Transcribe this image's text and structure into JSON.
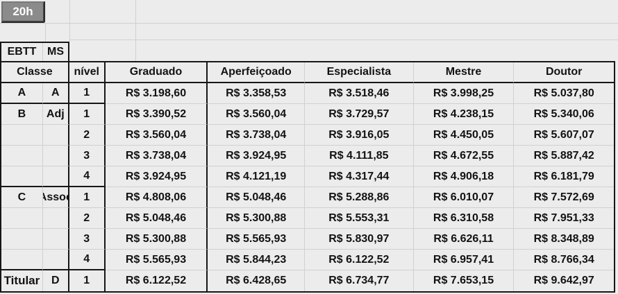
{
  "workload_button": {
    "label": "20h"
  },
  "type_box": {
    "left": "EBTT",
    "right": "MS"
  },
  "header": {
    "classe": "Classe",
    "nivel": "nível",
    "degree_columns": [
      "Graduado",
      "Aperfeiçoado",
      "Especialista",
      "Mestre",
      "Doutor"
    ]
  },
  "rows": [
    {
      "classe": "A",
      "sub": "A",
      "nivel": "1",
      "group_end": true,
      "values": [
        "R$ 3.198,60",
        "R$ 3.358,53",
        "R$ 3.518,46",
        "R$ 3.998,25",
        "R$ 5.037,80"
      ]
    },
    {
      "classe": "B",
      "sub": "Adj",
      "nivel": "1",
      "group_end": false,
      "values": [
        "R$ 3.390,52",
        "R$ 3.560,04",
        "R$ 3.729,57",
        "R$ 4.238,15",
        "R$ 5.340,06"
      ]
    },
    {
      "classe": "",
      "sub": "",
      "nivel": "2",
      "group_end": false,
      "values": [
        "R$ 3.560,04",
        "R$ 3.738,04",
        "R$ 3.916,05",
        "R$ 4.450,05",
        "R$ 5.607,07"
      ]
    },
    {
      "classe": "",
      "sub": "",
      "nivel": "3",
      "group_end": false,
      "values": [
        "R$ 3.738,04",
        "R$ 3.924,95",
        "R$ 4.111,85",
        "R$ 4.672,55",
        "R$ 5.887,42"
      ]
    },
    {
      "classe": "",
      "sub": "",
      "nivel": "4",
      "group_end": true,
      "values": [
        "R$ 3.924,95",
        "R$ 4.121,19",
        "R$ 4.317,44",
        "R$ 4.906,18",
        "R$ 6.181,79"
      ]
    },
    {
      "classe": "C",
      "sub": "Assoc",
      "nivel": "1",
      "group_end": false,
      "values": [
        "R$ 4.808,06",
        "R$ 5.048,46",
        "R$ 5.288,86",
        "R$ 6.010,07",
        "R$ 7.572,69"
      ]
    },
    {
      "classe": "",
      "sub": "",
      "nivel": "2",
      "group_end": false,
      "values": [
        "R$ 5.048,46",
        "R$ 5.300,88",
        "R$ 5.553,31",
        "R$ 6.310,58",
        "R$ 7.951,33"
      ]
    },
    {
      "classe": "",
      "sub": "",
      "nivel": "3",
      "group_end": false,
      "values": [
        "R$ 5.300,88",
        "R$ 5.565,93",
        "R$ 5.830,97",
        "R$ 6.626,11",
        "R$ 8.348,89"
      ]
    },
    {
      "classe": "",
      "sub": "",
      "nivel": "4",
      "group_end": true,
      "values": [
        "R$ 5.565,93",
        "R$ 5.844,23",
        "R$ 6.122,52",
        "R$ 6.957,41",
        "R$ 8.766,34"
      ]
    },
    {
      "classe": "Titular",
      "sub": "D",
      "nivel": "1",
      "group_end": false,
      "values": [
        "R$ 6.122,52",
        "R$ 6.428,65",
        "R$ 6.734,77",
        "R$ 7.653,15",
        "R$ 9.642,97"
      ]
    }
  ],
  "colors": {
    "background": "#ececec",
    "grid_light": "#d0d0d0",
    "border_black": "#161616",
    "button_gray": "#8b8b8b",
    "button_text": "#ffffff"
  }
}
